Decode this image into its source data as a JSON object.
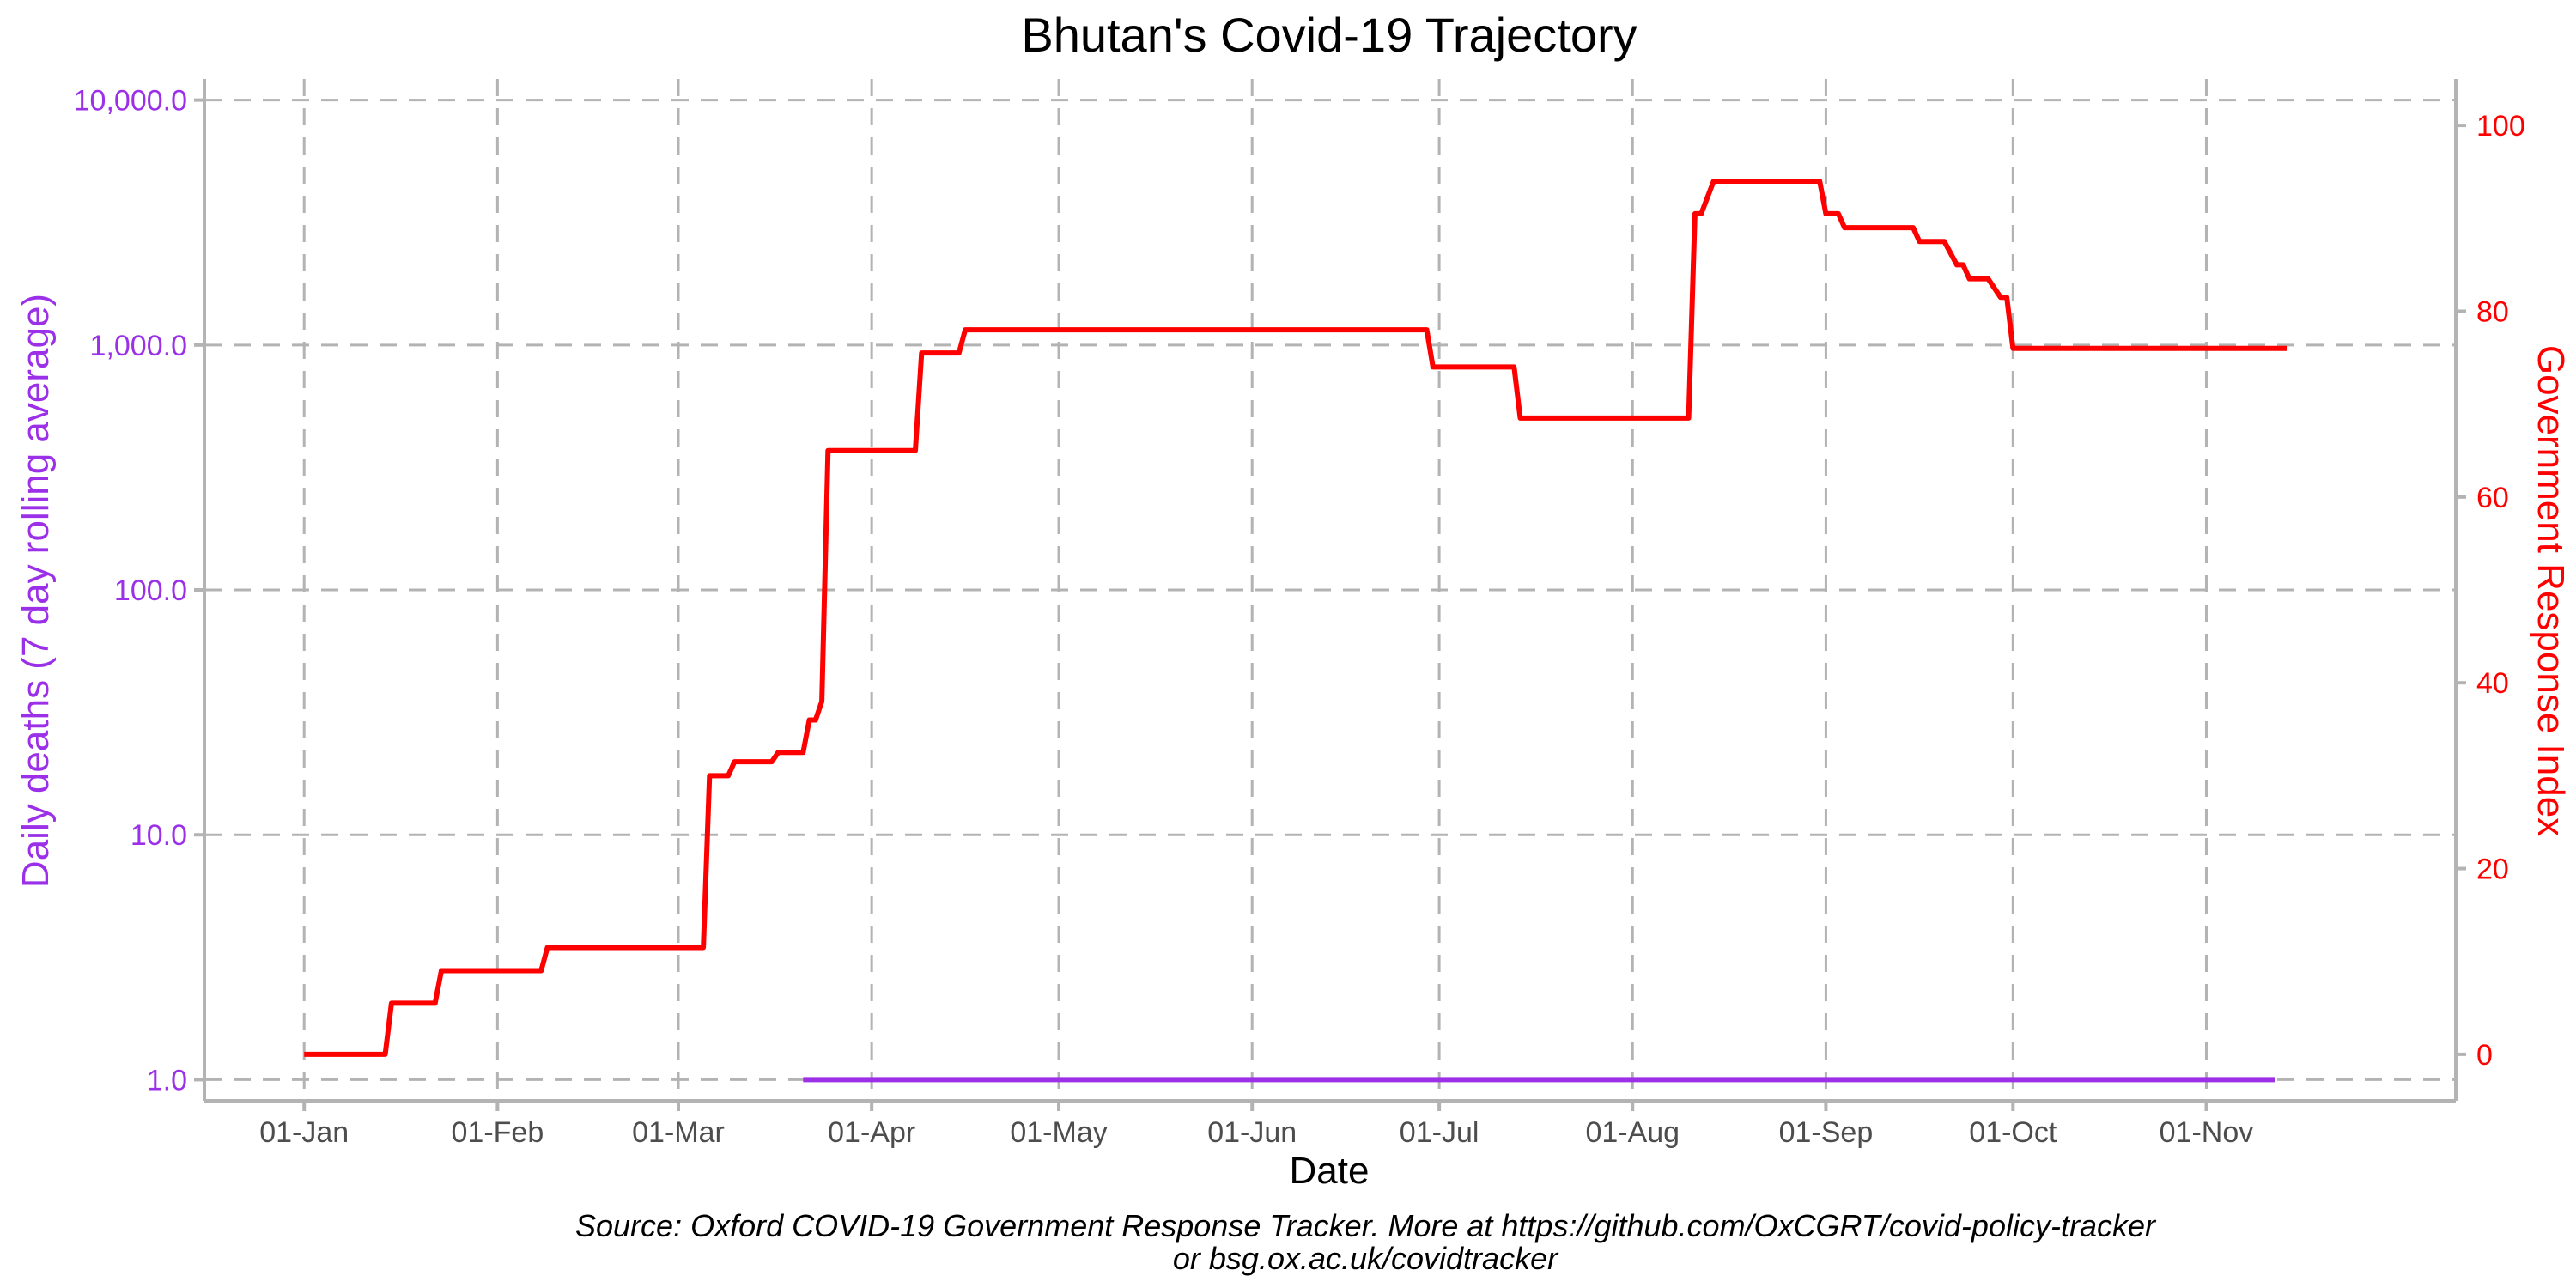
{
  "chart_data": {
    "type": "line",
    "title": "Bhutan's Covid-19 Trajectory",
    "xlabel": "Date",
    "ylabel_left": "Daily deaths (7 day rolling average)",
    "ylabel_right": "Government Response Index",
    "caption_line1": "Source: Oxford COVID-19 Government Response Tracker. More at https://github.com/OxCGRT/covid-policy-tracker",
    "caption_line2": "or bsg.ox.ac.uk/covidtracker",
    "x_ticks": [
      "01-Jan",
      "01-Feb",
      "01-Mar",
      "01-Apr",
      "01-May",
      "01-Jun",
      "01-Jul",
      "01-Aug",
      "01-Sep",
      "01-Oct",
      "01-Nov"
    ],
    "x_tick_dates": [
      "2020-01-01",
      "2020-02-01",
      "2020-03-01",
      "2020-04-01",
      "2020-05-01",
      "2020-06-01",
      "2020-07-01",
      "2020-08-01",
      "2020-09-01",
      "2020-10-01",
      "2020-11-01"
    ],
    "x_range": [
      "2019-12-16",
      "2020-12-11"
    ],
    "y_left_scale": "log10",
    "y_left_ticks": [
      "1.0",
      "10.0",
      "100.0",
      "1,000.0",
      "10,000.0"
    ],
    "y_left_tick_values": [
      1,
      10,
      100,
      1000,
      10000
    ],
    "y_left_range": [
      0.82,
      12200
    ],
    "y_right_ticks": [
      "0",
      "20",
      "40",
      "60",
      "80",
      "100"
    ],
    "y_right_tick_values": [
      0,
      20,
      40,
      60,
      80,
      100
    ],
    "y_right_range": [
      -5,
      105
    ],
    "grid": true,
    "colors": {
      "deaths": "#9b30e8",
      "response": "#ff0000",
      "grid": "#b3b3b3",
      "tick_text": "#4d4d4d"
    },
    "series": [
      {
        "name": "Daily deaths (7 day rolling average)",
        "axis": "left",
        "points": [
          {
            "x": "2020-03-21",
            "y": 1.0
          },
          {
            "x": "2020-11-12",
            "y": 1.0
          }
        ]
      },
      {
        "name": "Government Response Index",
        "axis": "right",
        "points": [
          {
            "x": "2020-01-01",
            "y": 0
          },
          {
            "x": "2020-01-14",
            "y": 0
          },
          {
            "x": "2020-01-15",
            "y": 5.5
          },
          {
            "x": "2020-01-22",
            "y": 5.5
          },
          {
            "x": "2020-01-23",
            "y": 9
          },
          {
            "x": "2020-02-08",
            "y": 9
          },
          {
            "x": "2020-02-09",
            "y": 11.5
          },
          {
            "x": "2020-03-05",
            "y": 11.5
          },
          {
            "x": "2020-03-06",
            "y": 30
          },
          {
            "x": "2020-03-09",
            "y": 30
          },
          {
            "x": "2020-03-10",
            "y": 31.5
          },
          {
            "x": "2020-03-16",
            "y": 31.5
          },
          {
            "x": "2020-03-17",
            "y": 32.5
          },
          {
            "x": "2020-03-21",
            "y": 32.5
          },
          {
            "x": "2020-03-22",
            "y": 36
          },
          {
            "x": "2020-03-23",
            "y": 36
          },
          {
            "x": "2020-03-24",
            "y": 38
          },
          {
            "x": "2020-03-25",
            "y": 65
          },
          {
            "x": "2020-04-08",
            "y": 65
          },
          {
            "x": "2020-04-09",
            "y": 75.5
          },
          {
            "x": "2020-04-15",
            "y": 75.5
          },
          {
            "x": "2020-04-16",
            "y": 78
          },
          {
            "x": "2020-06-29",
            "y": 78
          },
          {
            "x": "2020-06-30",
            "y": 74
          },
          {
            "x": "2020-07-13",
            "y": 74
          },
          {
            "x": "2020-07-14",
            "y": 68.5
          },
          {
            "x": "2020-08-10",
            "y": 68.5
          },
          {
            "x": "2020-08-11",
            "y": 90.5
          },
          {
            "x": "2020-08-12",
            "y": 90.5
          },
          {
            "x": "2020-08-14",
            "y": 94
          },
          {
            "x": "2020-08-31",
            "y": 94
          },
          {
            "x": "2020-09-01",
            "y": 90.5
          },
          {
            "x": "2020-09-03",
            "y": 90.5
          },
          {
            "x": "2020-09-04",
            "y": 89
          },
          {
            "x": "2020-09-15",
            "y": 89
          },
          {
            "x": "2020-09-16",
            "y": 87.5
          },
          {
            "x": "2020-09-20",
            "y": 87.5
          },
          {
            "x": "2020-09-22",
            "y": 85
          },
          {
            "x": "2020-09-23",
            "y": 85
          },
          {
            "x": "2020-09-24",
            "y": 83.5
          },
          {
            "x": "2020-09-27",
            "y": 83.5
          },
          {
            "x": "2020-09-29",
            "y": 81.5
          },
          {
            "x": "2020-09-30",
            "y": 81.5
          },
          {
            "x": "2020-10-01",
            "y": 76
          },
          {
            "x": "2020-11-14",
            "y": 76
          }
        ]
      }
    ]
  }
}
